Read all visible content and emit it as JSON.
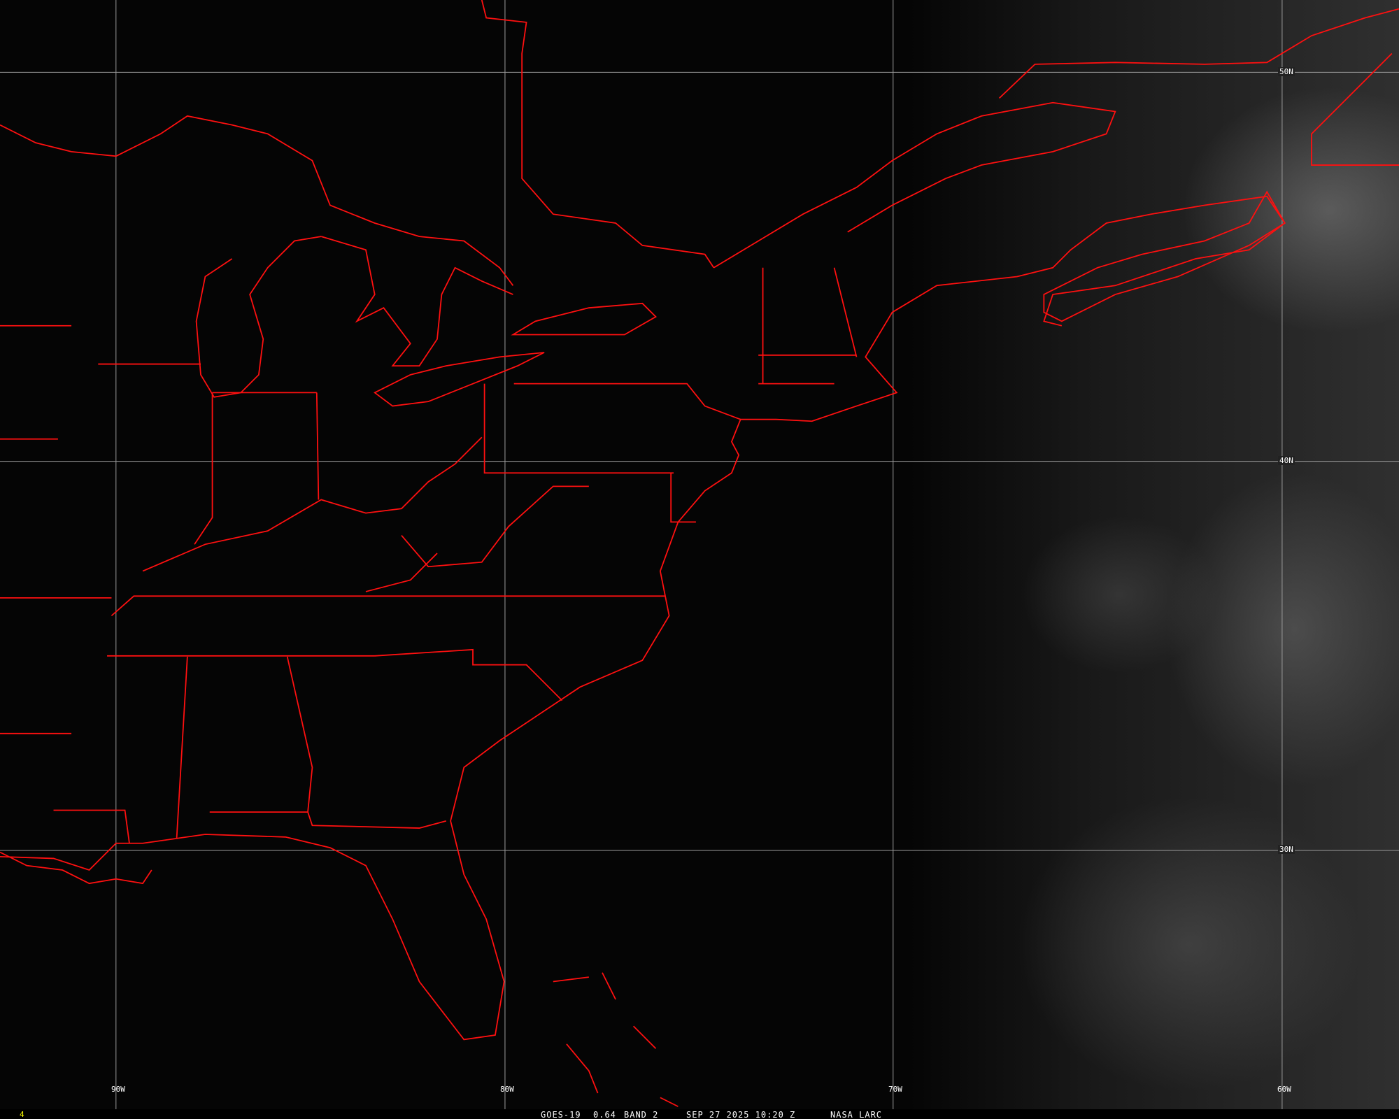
{
  "satellite": "GOES-19",
  "channel": "0.64",
  "band": "BAND 2",
  "datetime": "SEP 27 2025 10:20 Z",
  "credit": "NASA LARC",
  "frame_number": "4",
  "longitude_labels": [
    "90W",
    "80W",
    "70W",
    "60W"
  ],
  "latitude_labels": [
    "50N",
    "40N",
    "30N"
  ],
  "colors": {
    "boundaries": "#ff0000",
    "grid": "#9a9a9a",
    "background": "#050505",
    "caption_text": "#ffffff",
    "frame_number": "#ffff00"
  }
}
